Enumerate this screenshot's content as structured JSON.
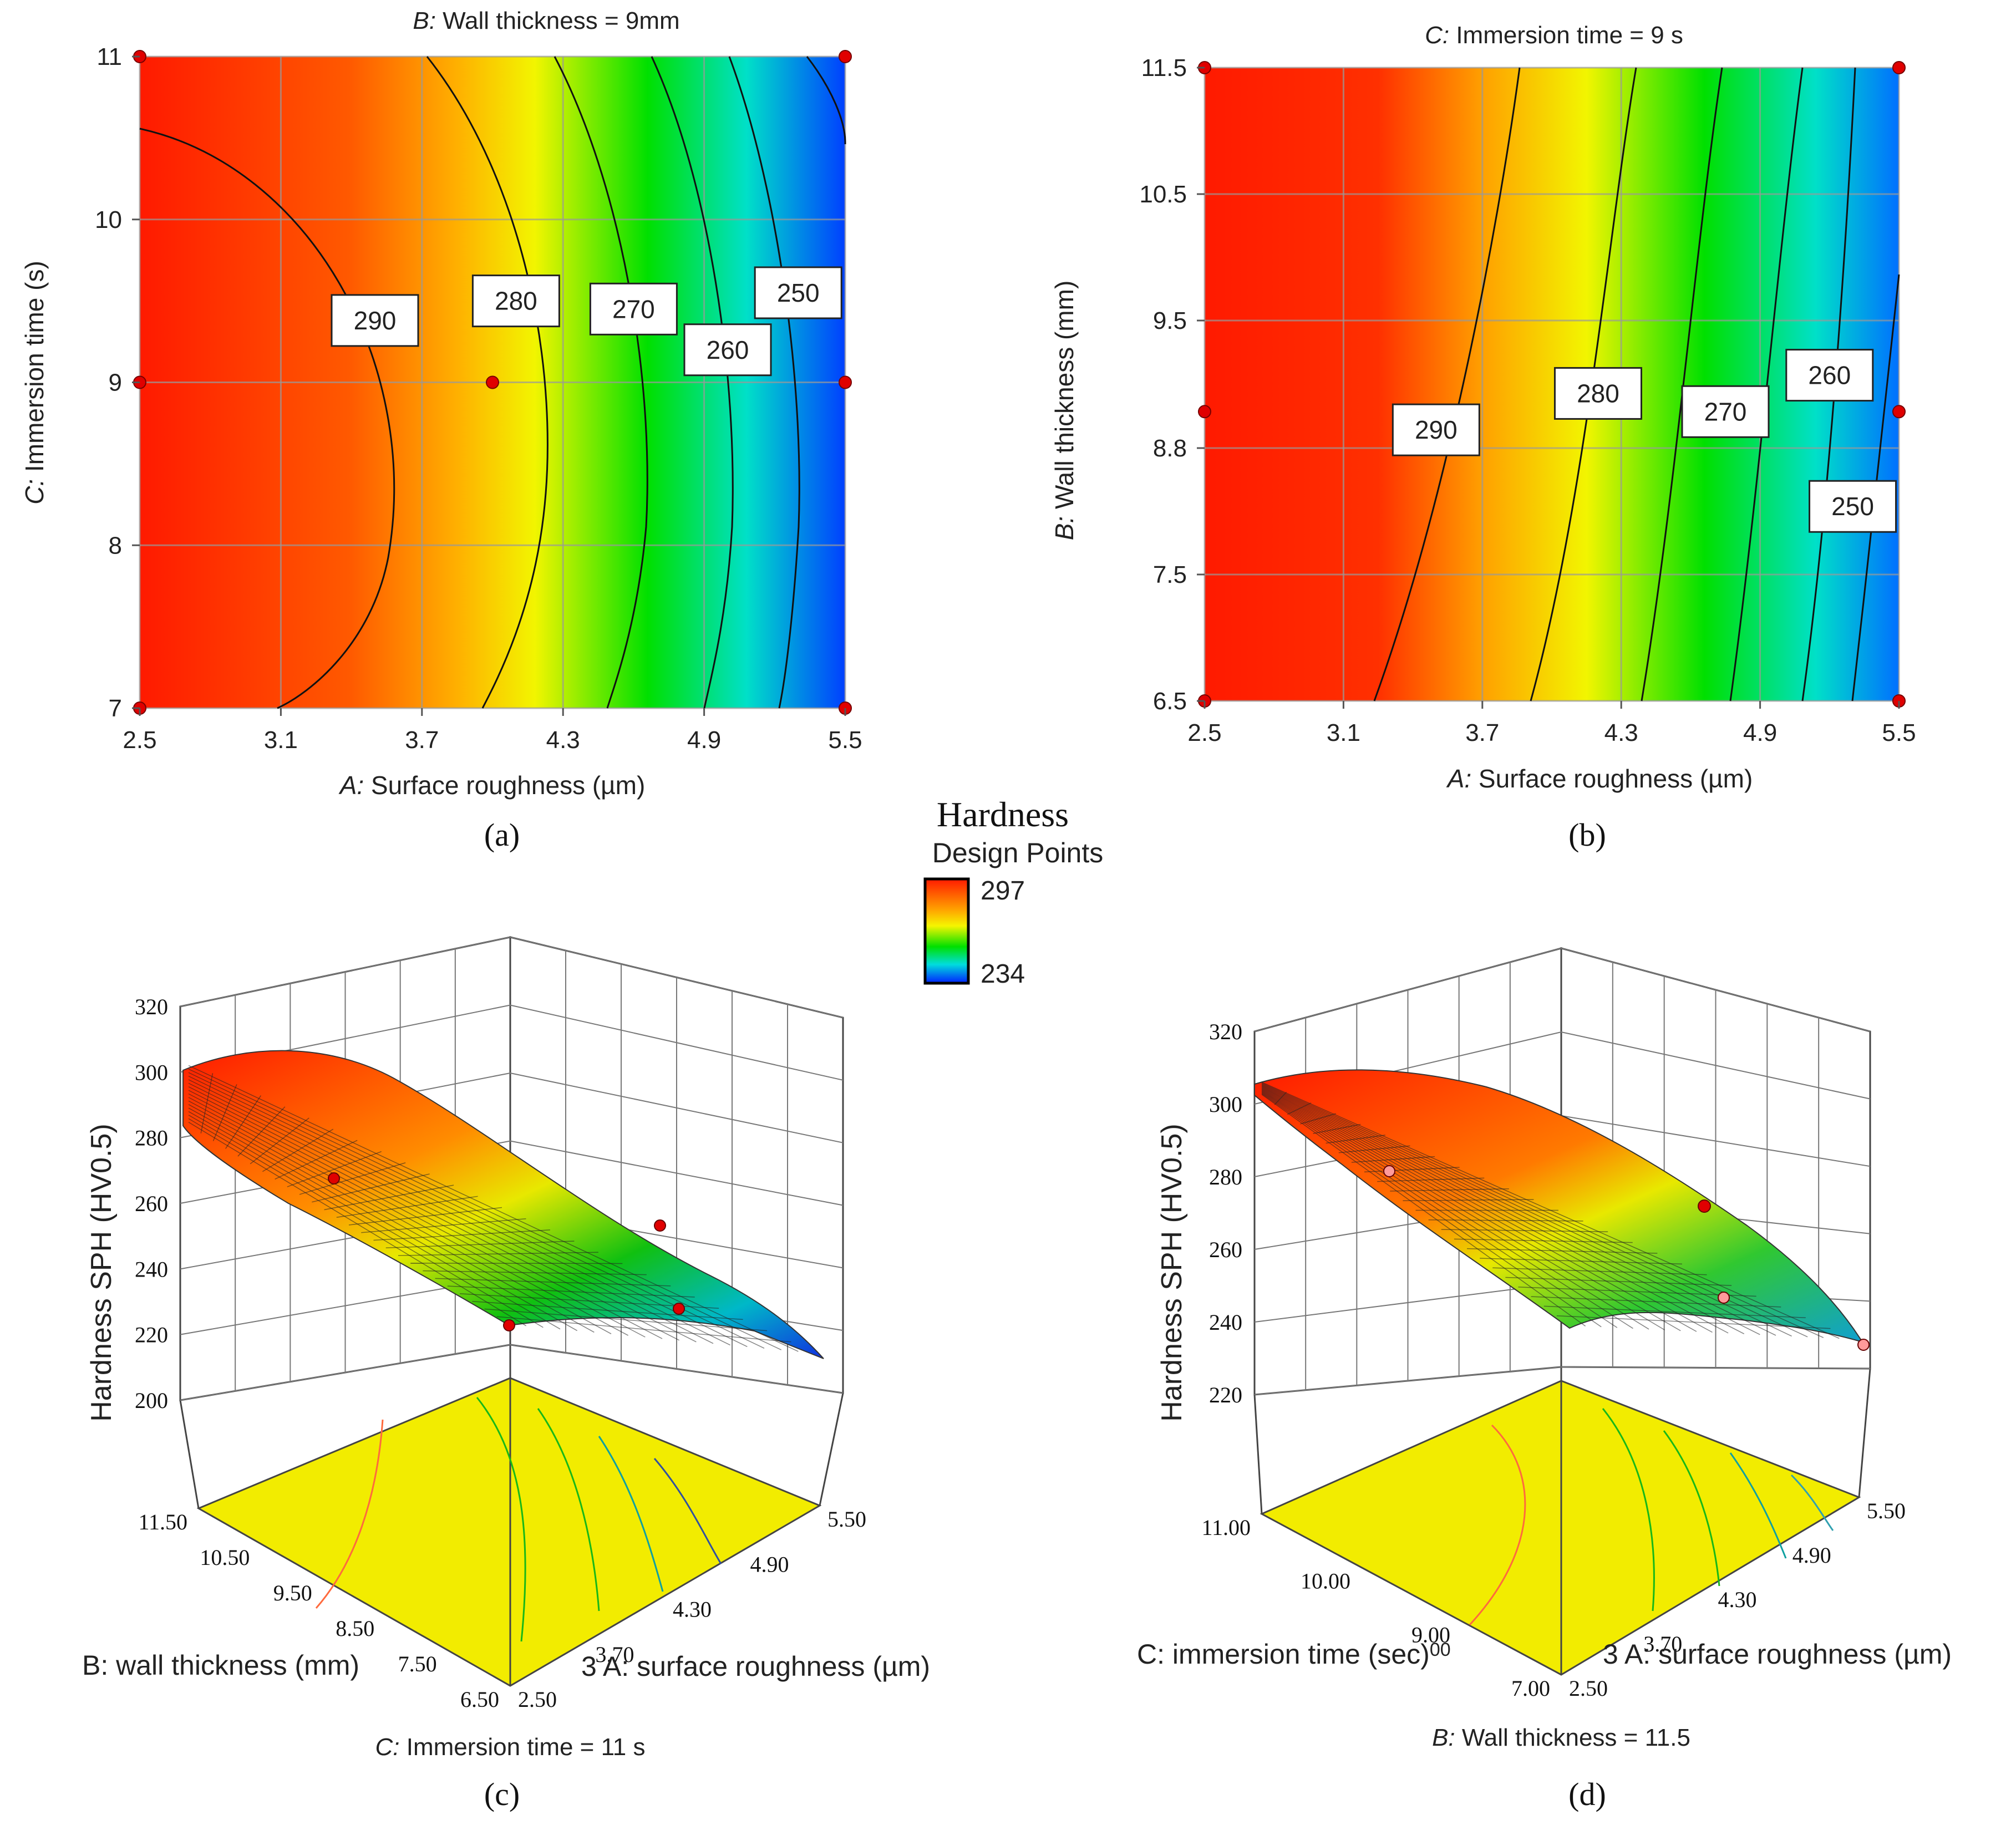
{
  "legend": {
    "title": "Hardness",
    "subtitle": "Design Points",
    "max_label": "297",
    "min_label": "234",
    "subtitle_color": "#e8101a"
  },
  "panel_labels": [
    "(a)",
    "(b)",
    "(c)",
    "(d)"
  ],
  "chart_data": [
    {
      "id": "a",
      "type": "heatmap",
      "subtitle_prefix": "B:",
      "subtitle_text": " Wall thickness = 9mm",
      "xlabel_prefix": "A:",
      "xlabel_text": " Surface roughness (µm)",
      "ylabel_prefix": "C:",
      "ylabel_text": " Immersion time (s)",
      "xlim": [
        2.5,
        5.5
      ],
      "ylim": [
        7,
        11
      ],
      "xticks": [
        "2.5",
        "3.1",
        "3.7",
        "4.3",
        "4.9",
        "5.5"
      ],
      "yticks": [
        "7",
        "8",
        "9",
        "10",
        "11"
      ],
      "contour_labels": [
        {
          "value": "290",
          "x": 3.5,
          "y": 9.38
        },
        {
          "value": "280",
          "x": 4.1,
          "y": 9.5
        },
        {
          "value": "270",
          "x": 4.6,
          "y": 9.45
        },
        {
          "value": "260",
          "x": 5.0,
          "y": 9.2
        },
        {
          "value": "250",
          "x": 5.3,
          "y": 9.55
        }
      ],
      "design_points": [
        [
          2.5,
          11
        ],
        [
          5.5,
          11
        ],
        [
          2.5,
          9
        ],
        [
          4.0,
          9
        ],
        [
          5.5,
          9
        ],
        [
          2.5,
          7
        ],
        [
          5.5,
          7
        ]
      ]
    },
    {
      "id": "b",
      "type": "heatmap",
      "subtitle_prefix": "C:",
      "subtitle_text": " Immersion time = 9 s",
      "xlabel_prefix": "A:",
      "xlabel_text": " Surface roughness (µm)",
      "ylabel_prefix": "B:",
      "ylabel_text": " Wall thickness (mm)",
      "xlim": [
        2.5,
        5.5
      ],
      "ylim": [
        6.5,
        11.5
      ],
      "xticks": [
        "2.5",
        "3.1",
        "3.7",
        "4.3",
        "4.9",
        "5.5"
      ],
      "yticks": [
        "6.5",
        "7.5",
        "8.8",
        "9.5",
        "10.5",
        "11.5"
      ],
      "contour_labels": [
        {
          "value": "290",
          "x": 3.5,
          "y": 8.9
        },
        {
          "value": "280",
          "x": 4.2,
          "y": 9.1
        },
        {
          "value": "270",
          "x": 4.75,
          "y": 9.0
        },
        {
          "value": "260",
          "x": 5.2,
          "y": 9.2
        },
        {
          "value": "250",
          "x": 5.3,
          "y": 8.2
        }
      ],
      "design_points": [
        [
          2.5,
          11.5
        ],
        [
          5.5,
          11.5
        ],
        [
          2.5,
          9
        ],
        [
          5.5,
          9
        ],
        [
          2.5,
          6.5
        ],
        [
          5.5,
          6.5
        ]
      ]
    },
    {
      "id": "c",
      "type": "surface",
      "subtitle_prefix": "C:",
      "subtitle_text": " Immersion time = 11 s",
      "zlabel": "Hardness SPH (HV0.5)",
      "xlabel": "3 A: surface roughness (µm)",
      "ylabel": "B: wall thickness (mm)",
      "zticks": [
        "200",
        "220",
        "240",
        "260",
        "280",
        "300",
        "320"
      ],
      "xticks": [
        "2.50",
        "3.70",
        "4.30",
        "4.90",
        "5.50"
      ],
      "yticks": [
        "6.50",
        "7.50",
        "8.50",
        "9.50",
        "10.50",
        "11.50"
      ],
      "zlim": [
        200,
        320
      ]
    },
    {
      "id": "d",
      "type": "surface",
      "subtitle_prefix": "B:",
      "subtitle_text": " Wall thickness = 11.5",
      "zlabel": "Hardness SPH (HV0.5)",
      "xlabel": "3 A: surface roughness (µm)",
      "ylabel": "C: immersion time (sec)",
      "ylabel_tail": "00",
      "zticks": [
        "220",
        "240",
        "260",
        "280",
        "300",
        "320"
      ],
      "xticks": [
        "2.50",
        "3.70",
        "4.30",
        "4.90",
        "5.50"
      ],
      "yticks": [
        "7.00",
        "9.00",
        "10.00",
        "11.00"
      ],
      "zlim": [
        220,
        320
      ]
    }
  ]
}
